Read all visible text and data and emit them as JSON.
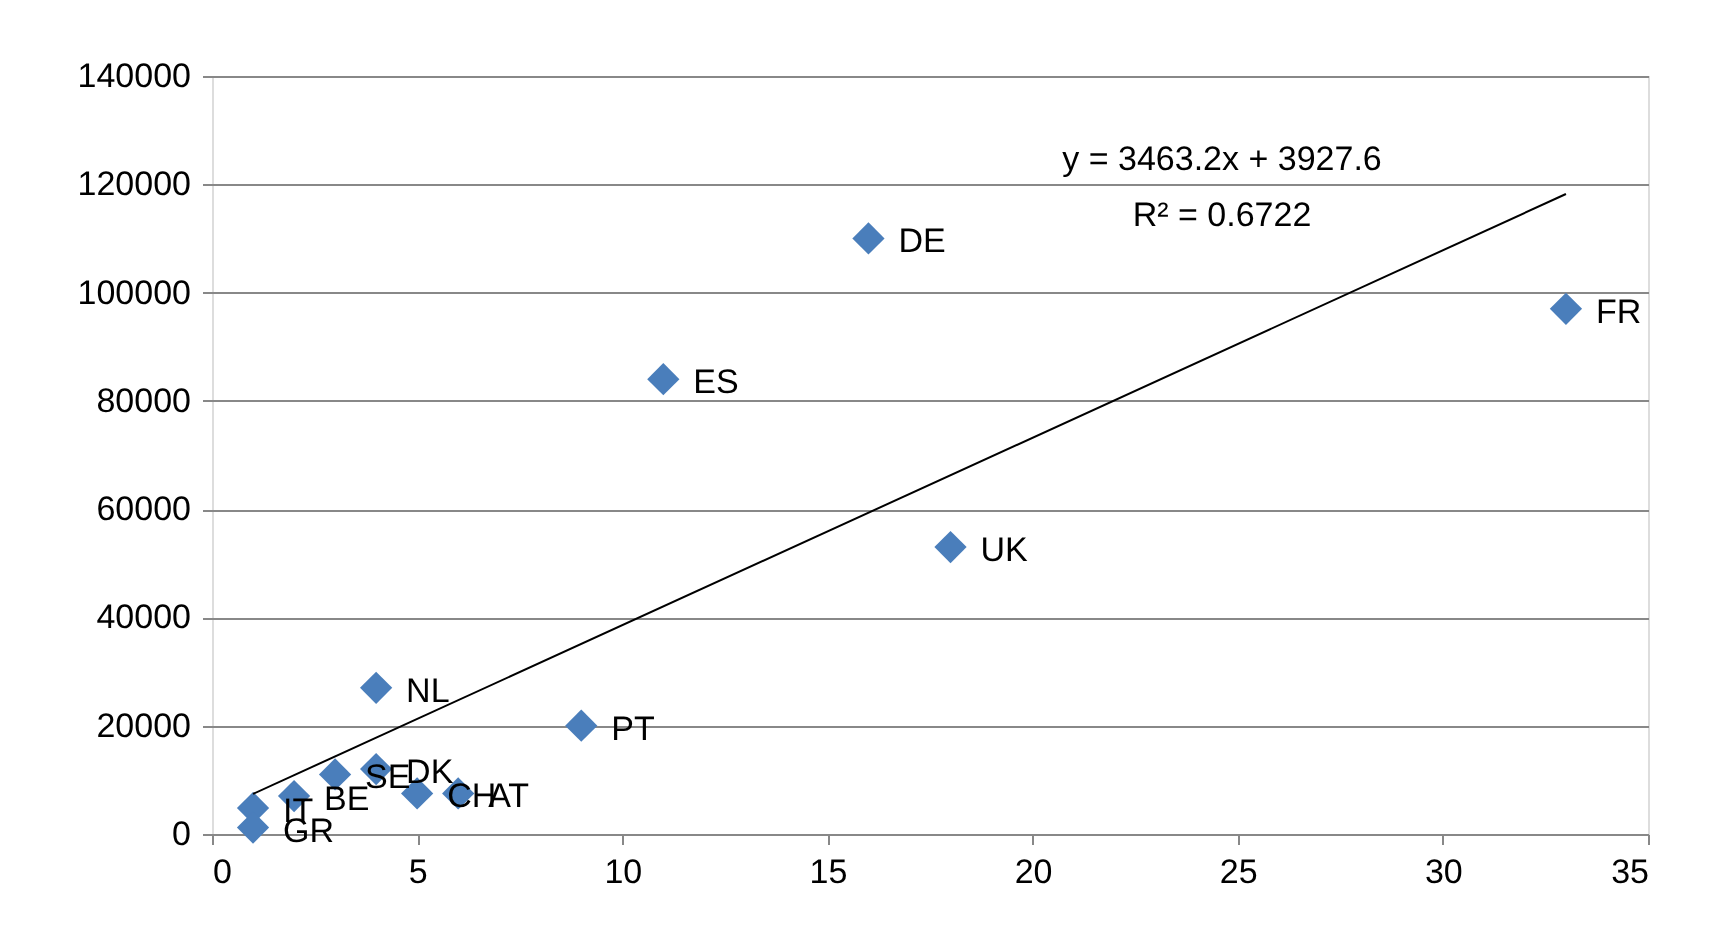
{
  "chart_data": {
    "type": "scatter",
    "x": [
      33,
      16,
      11,
      18,
      9,
      4,
      1,
      1,
      2,
      3,
      4,
      5,
      6
    ],
    "series": [
      {
        "color": "#4a7ebb",
        "marker": "diamond",
        "values": [
          97000,
          110000,
          84000,
          53000,
          20000,
          27000,
          4800,
          1200,
          7000,
          11000,
          12000,
          7500,
          7500
        ]
      },
      {
        "type": "line",
        "color": "#000000",
        "line_style": "solid",
        "x": [
          1,
          33
        ],
        "values": [
          7400,
          118200
        ]
      }
    ],
    "annotations": [
      "y = 3463.2x + 3927.6",
      "R² = 0.6722",
      {
        "text": "FR",
        "x": 33,
        "y": 97000
      },
      {
        "text": "DE",
        "x": 16,
        "y": 110000
      },
      {
        "text": "ES",
        "x": 11,
        "y": 84000
      },
      {
        "text": "UK",
        "x": 18,
        "y": 53000
      },
      {
        "text": "PT",
        "x": 9,
        "y": 20000
      },
      {
        "text": "NL",
        "x": 4,
        "y": 27000
      },
      {
        "text": "IT",
        "x": 1,
        "y": 4800
      },
      {
        "text": "GR",
        "x": 1,
        "y": 1200
      },
      {
        "text": "BE",
        "x": 2,
        "y": 7000
      },
      {
        "text": "SE",
        "x": 3,
        "y": 11000
      },
      {
        "text": "DK",
        "x": 4,
        "y": 12000
      },
      {
        "text": "CH",
        "x": 5,
        "y": 7500
      },
      {
        "text": "AT",
        "x": 6,
        "y": 7500
      }
    ],
    "xlim": [
      0,
      35
    ],
    "xticks": [
      0,
      5,
      10,
      15,
      20,
      25,
      30,
      35
    ],
    "ylim": [
      0,
      140000
    ],
    "yticks": [
      0,
      20000,
      40000,
      60000,
      80000,
      100000,
      120000,
      140000
    ],
    "grid": "y"
  }
}
